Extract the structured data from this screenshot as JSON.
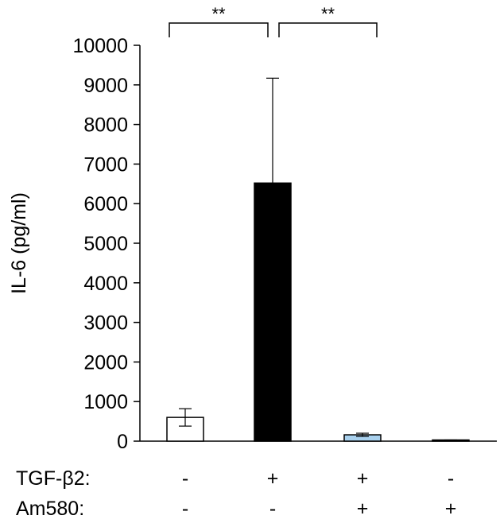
{
  "chart_data": {
    "type": "bar",
    "title": "",
    "ylabel": "IL-6 (pg/ml)",
    "xlabel": "",
    "ylim": [
      0,
      10000
    ],
    "yticks": [
      0,
      1000,
      2000,
      3000,
      4000,
      5000,
      6000,
      7000,
      8000,
      9000,
      10000
    ],
    "grid": false,
    "bars": [
      {
        "value": 600,
        "error": 220,
        "fill": "#ffffff"
      },
      {
        "value": 6520,
        "error": 2650,
        "fill": "#000000"
      },
      {
        "value": 160,
        "error": 40,
        "fill": "#a9d1ee"
      },
      {
        "value": 20,
        "error": 10,
        "fill": "#ffffff"
      }
    ],
    "conditions": [
      {
        "label": "TGF-β2:",
        "values": [
          "-",
          "+",
          "+",
          "-"
        ]
      },
      {
        "label": "Am580:",
        "values": [
          "-",
          "-",
          "+",
          "+"
        ]
      }
    ],
    "significance": [
      {
        "from": 0,
        "to": 1,
        "label": "**"
      },
      {
        "from": 1,
        "to": 2,
        "label": "**"
      }
    ]
  }
}
